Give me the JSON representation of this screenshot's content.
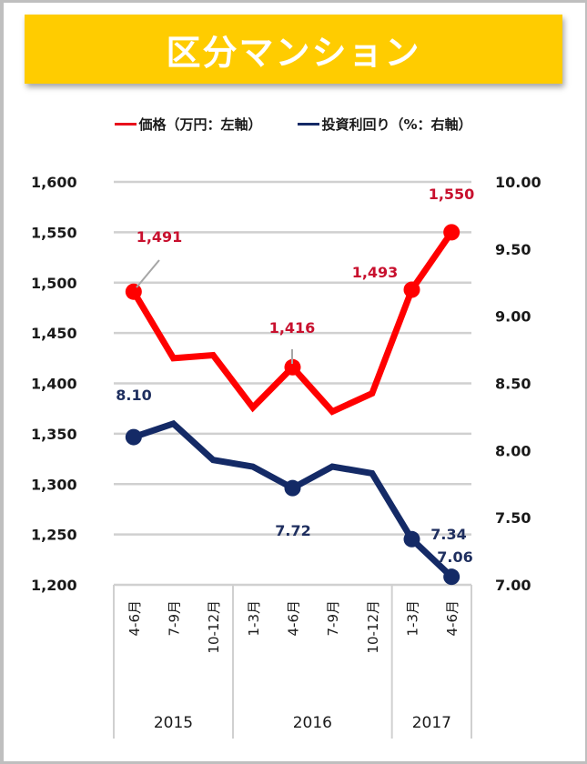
{
  "title": "区分マンション",
  "legend": [
    {
      "label": "価格（万円：左軸）",
      "color": "#e8101c"
    },
    {
      "label": "投資利回り（%：右軸）",
      "color": "#142a66"
    }
  ],
  "chart_data": {
    "type": "line",
    "title": "区分マンション",
    "categories": [
      "4-6月",
      "7-9月",
      "10-12月",
      "1-3月",
      "4-6月",
      "7-9月",
      "10-12月",
      "1-3月",
      "4-6月"
    ],
    "year_groups": [
      {
        "year": "2015",
        "start": 0,
        "count": 3
      },
      {
        "year": "2016",
        "start": 3,
        "count": 4
      },
      {
        "year": "2017",
        "start": 7,
        "count": 2
      }
    ],
    "series": [
      {
        "name": "価格（万円：左軸）",
        "axis": "left",
        "color": "#ff0000",
        "values": [
          1491,
          1425,
          1428,
          1376,
          1416,
          1372,
          1390,
          1493,
          1550
        ],
        "markers": [
          0,
          4,
          7,
          8
        ],
        "data_labels": [
          {
            "index": 0,
            "text": "1,491"
          },
          {
            "index": 4,
            "text": "1,416"
          },
          {
            "index": 7,
            "text": "1,493"
          },
          {
            "index": 8,
            "text": "1,550"
          }
        ]
      },
      {
        "name": "投資利回り（%：右軸）",
        "axis": "right",
        "color": "#142a66",
        "values": [
          8.1,
          8.2,
          7.93,
          7.88,
          7.72,
          7.88,
          7.83,
          7.34,
          7.06
        ],
        "markers": [
          0,
          4,
          7,
          8
        ],
        "data_labels": [
          {
            "index": 0,
            "text": "8.10"
          },
          {
            "index": 4,
            "text": "7.72"
          },
          {
            "index": 7,
            "text": "7.34"
          },
          {
            "index": 8,
            "text": "7.06"
          }
        ]
      }
    ],
    "left_axis": {
      "ylim": [
        1200,
        1600
      ],
      "ticks": [
        "1,200",
        "1,250",
        "1,300",
        "1,350",
        "1,400",
        "1,450",
        "1,500",
        "1,550",
        "1,600"
      ]
    },
    "right_axis": {
      "ylim": [
        7.0,
        10.0
      ],
      "ticks": [
        "7.00",
        "7.50",
        "8.00",
        "8.50",
        "9.00",
        "9.50",
        "10.00"
      ]
    },
    "grid": true,
    "legend_position": "top",
    "xlabel": "",
    "ylabel": ""
  }
}
